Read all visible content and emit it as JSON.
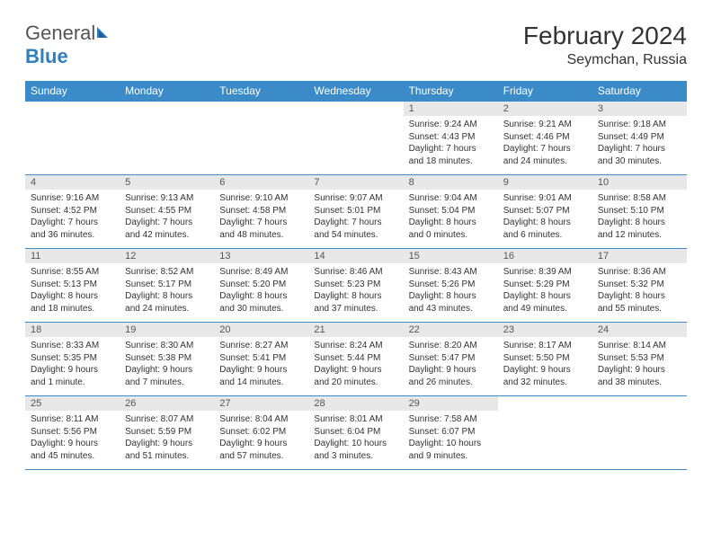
{
  "logo": {
    "text_gray": "General",
    "text_blue": "Blue",
    "icon_color": "#2f7fbf"
  },
  "title": "February 2024",
  "location": "Seymchan, Russia",
  "header_bg": "#3b8bc9",
  "header_text_color": "#ffffff",
  "daynum_bg": "#e8e8e8",
  "border_color": "#3b8bc9",
  "body_text_color": "#333333",
  "font_family": "Arial",
  "weekdays": [
    "Sunday",
    "Monday",
    "Tuesday",
    "Wednesday",
    "Thursday",
    "Friday",
    "Saturday"
  ],
  "weeks": [
    [
      null,
      null,
      null,
      null,
      {
        "n": "1",
        "sr": "Sunrise: 9:24 AM",
        "ss": "Sunset: 4:43 PM",
        "d1": "Daylight: 7 hours",
        "d2": "and 18 minutes."
      },
      {
        "n": "2",
        "sr": "Sunrise: 9:21 AM",
        "ss": "Sunset: 4:46 PM",
        "d1": "Daylight: 7 hours",
        "d2": "and 24 minutes."
      },
      {
        "n": "3",
        "sr": "Sunrise: 9:18 AM",
        "ss": "Sunset: 4:49 PM",
        "d1": "Daylight: 7 hours",
        "d2": "and 30 minutes."
      }
    ],
    [
      {
        "n": "4",
        "sr": "Sunrise: 9:16 AM",
        "ss": "Sunset: 4:52 PM",
        "d1": "Daylight: 7 hours",
        "d2": "and 36 minutes."
      },
      {
        "n": "5",
        "sr": "Sunrise: 9:13 AM",
        "ss": "Sunset: 4:55 PM",
        "d1": "Daylight: 7 hours",
        "d2": "and 42 minutes."
      },
      {
        "n": "6",
        "sr": "Sunrise: 9:10 AM",
        "ss": "Sunset: 4:58 PM",
        "d1": "Daylight: 7 hours",
        "d2": "and 48 minutes."
      },
      {
        "n": "7",
        "sr": "Sunrise: 9:07 AM",
        "ss": "Sunset: 5:01 PM",
        "d1": "Daylight: 7 hours",
        "d2": "and 54 minutes."
      },
      {
        "n": "8",
        "sr": "Sunrise: 9:04 AM",
        "ss": "Sunset: 5:04 PM",
        "d1": "Daylight: 8 hours",
        "d2": "and 0 minutes."
      },
      {
        "n": "9",
        "sr": "Sunrise: 9:01 AM",
        "ss": "Sunset: 5:07 PM",
        "d1": "Daylight: 8 hours",
        "d2": "and 6 minutes."
      },
      {
        "n": "10",
        "sr": "Sunrise: 8:58 AM",
        "ss": "Sunset: 5:10 PM",
        "d1": "Daylight: 8 hours",
        "d2": "and 12 minutes."
      }
    ],
    [
      {
        "n": "11",
        "sr": "Sunrise: 8:55 AM",
        "ss": "Sunset: 5:13 PM",
        "d1": "Daylight: 8 hours",
        "d2": "and 18 minutes."
      },
      {
        "n": "12",
        "sr": "Sunrise: 8:52 AM",
        "ss": "Sunset: 5:17 PM",
        "d1": "Daylight: 8 hours",
        "d2": "and 24 minutes."
      },
      {
        "n": "13",
        "sr": "Sunrise: 8:49 AM",
        "ss": "Sunset: 5:20 PM",
        "d1": "Daylight: 8 hours",
        "d2": "and 30 minutes."
      },
      {
        "n": "14",
        "sr": "Sunrise: 8:46 AM",
        "ss": "Sunset: 5:23 PM",
        "d1": "Daylight: 8 hours",
        "d2": "and 37 minutes."
      },
      {
        "n": "15",
        "sr": "Sunrise: 8:43 AM",
        "ss": "Sunset: 5:26 PM",
        "d1": "Daylight: 8 hours",
        "d2": "and 43 minutes."
      },
      {
        "n": "16",
        "sr": "Sunrise: 8:39 AM",
        "ss": "Sunset: 5:29 PM",
        "d1": "Daylight: 8 hours",
        "d2": "and 49 minutes."
      },
      {
        "n": "17",
        "sr": "Sunrise: 8:36 AM",
        "ss": "Sunset: 5:32 PM",
        "d1": "Daylight: 8 hours",
        "d2": "and 55 minutes."
      }
    ],
    [
      {
        "n": "18",
        "sr": "Sunrise: 8:33 AM",
        "ss": "Sunset: 5:35 PM",
        "d1": "Daylight: 9 hours",
        "d2": "and 1 minute."
      },
      {
        "n": "19",
        "sr": "Sunrise: 8:30 AM",
        "ss": "Sunset: 5:38 PM",
        "d1": "Daylight: 9 hours",
        "d2": "and 7 minutes."
      },
      {
        "n": "20",
        "sr": "Sunrise: 8:27 AM",
        "ss": "Sunset: 5:41 PM",
        "d1": "Daylight: 9 hours",
        "d2": "and 14 minutes."
      },
      {
        "n": "21",
        "sr": "Sunrise: 8:24 AM",
        "ss": "Sunset: 5:44 PM",
        "d1": "Daylight: 9 hours",
        "d2": "and 20 minutes."
      },
      {
        "n": "22",
        "sr": "Sunrise: 8:20 AM",
        "ss": "Sunset: 5:47 PM",
        "d1": "Daylight: 9 hours",
        "d2": "and 26 minutes."
      },
      {
        "n": "23",
        "sr": "Sunrise: 8:17 AM",
        "ss": "Sunset: 5:50 PM",
        "d1": "Daylight: 9 hours",
        "d2": "and 32 minutes."
      },
      {
        "n": "24",
        "sr": "Sunrise: 8:14 AM",
        "ss": "Sunset: 5:53 PM",
        "d1": "Daylight: 9 hours",
        "d2": "and 38 minutes."
      }
    ],
    [
      {
        "n": "25",
        "sr": "Sunrise: 8:11 AM",
        "ss": "Sunset: 5:56 PM",
        "d1": "Daylight: 9 hours",
        "d2": "and 45 minutes."
      },
      {
        "n": "26",
        "sr": "Sunrise: 8:07 AM",
        "ss": "Sunset: 5:59 PM",
        "d1": "Daylight: 9 hours",
        "d2": "and 51 minutes."
      },
      {
        "n": "27",
        "sr": "Sunrise: 8:04 AM",
        "ss": "Sunset: 6:02 PM",
        "d1": "Daylight: 9 hours",
        "d2": "and 57 minutes."
      },
      {
        "n": "28",
        "sr": "Sunrise: 8:01 AM",
        "ss": "Sunset: 6:04 PM",
        "d1": "Daylight: 10 hours",
        "d2": "and 3 minutes."
      },
      {
        "n": "29",
        "sr": "Sunrise: 7:58 AM",
        "ss": "Sunset: 6:07 PM",
        "d1": "Daylight: 10 hours",
        "d2": "and 9 minutes."
      },
      null,
      null
    ]
  ]
}
